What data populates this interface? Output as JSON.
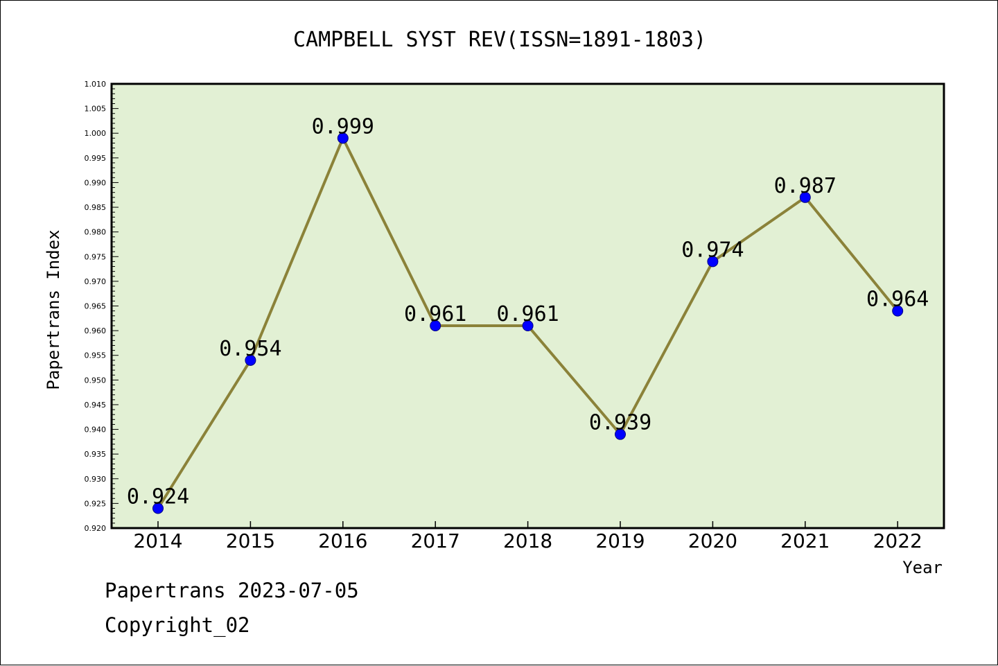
{
  "chart_data": {
    "type": "line",
    "title": "CAMPBELL SYST REV(ISSN=1891-1803)",
    "xlabel": "Year",
    "ylabel": "Papertrans Index",
    "categories": [
      "2014",
      "2015",
      "2016",
      "2017",
      "2018",
      "2019",
      "2020",
      "2021",
      "2022"
    ],
    "series": [
      {
        "values": [
          0.924,
          0.954,
          0.999,
          0.961,
          0.961,
          0.939,
          0.974,
          0.987,
          0.964
        ],
        "data_labels": [
          "0.924",
          "0.954",
          "0.999",
          "0.961",
          "0.961",
          "0.939",
          "0.974",
          "0.987",
          "0.964"
        ]
      }
    ],
    "ylim": [
      0.92,
      1.01
    ],
    "yticks": [
      "0.920",
      "0.925",
      "0.930",
      "0.935",
      "0.940",
      "0.945",
      "0.950",
      "0.955",
      "0.960",
      "0.965",
      "0.970",
      "0.975",
      "0.980",
      "0.985",
      "0.990",
      "0.995",
      "1.000",
      "1.005",
      "1.010"
    ],
    "grid": false,
    "legend": "none",
    "colors": {
      "plot_background": "#e2f0d4",
      "line": "#8b8239",
      "marker": "#0000ff",
      "marker_edge": "#000080"
    }
  },
  "footer": {
    "date_line": "Papertrans 2023-07-05",
    "copyright_line": "Copyright_02"
  }
}
